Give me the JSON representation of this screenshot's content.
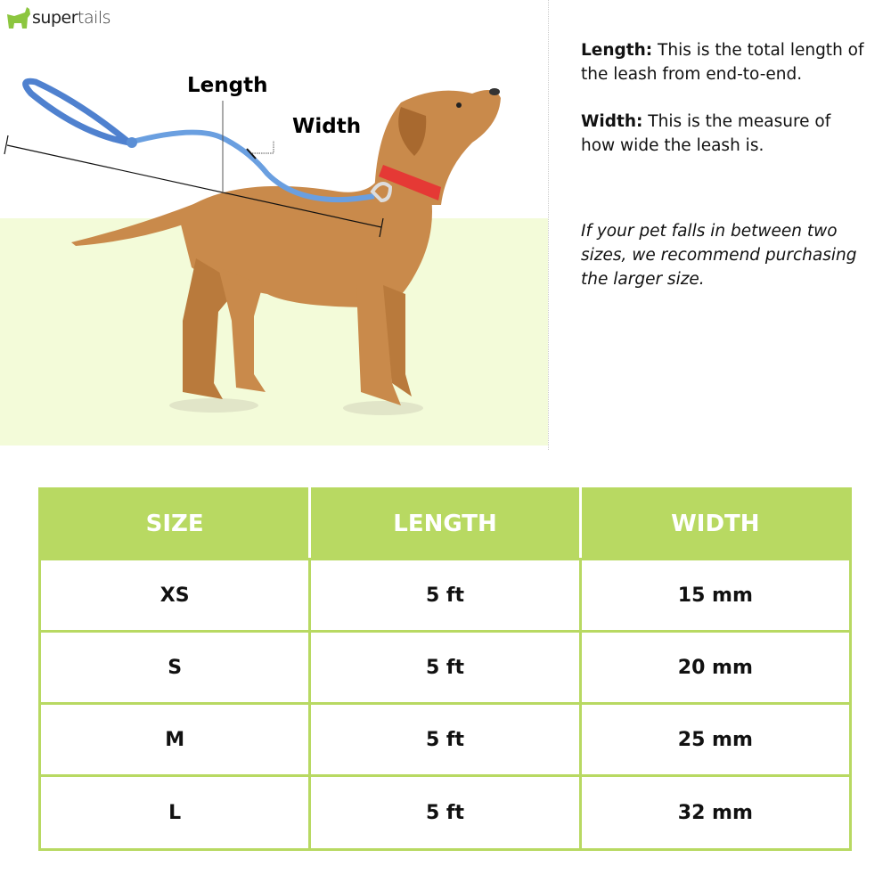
{
  "brand": {
    "logo_part1": "super",
    "logo_part2": "tails",
    "color": "#8cc63f"
  },
  "diagram": {
    "length_label": "Length",
    "width_label": "Width"
  },
  "descriptions": {
    "length_term": "Length:",
    "length_text": " This is the total length of the leash from end-to-end.",
    "width_term": "Width:",
    "width_text": " This is the measure of how wide the leash is.",
    "note": "If your pet falls in between two sizes, we recommend purchasing the larger size."
  },
  "table": {
    "headers": [
      "SIZE",
      "LENGTH",
      "WIDTH"
    ],
    "rows": [
      [
        "XS",
        "5 ft",
        "15 mm"
      ],
      [
        "S",
        "5 ft",
        "20 mm"
      ],
      [
        "M",
        "5 ft",
        "25 mm"
      ],
      [
        "L",
        "5 ft",
        "32 mm"
      ]
    ],
    "accent_color": "#b8d962"
  }
}
